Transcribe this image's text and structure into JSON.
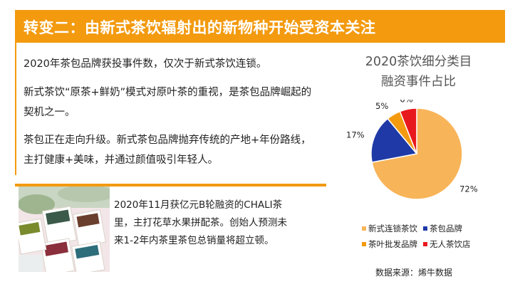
{
  "header": {
    "title": "转变二：由新式茶饮辐射出的新物种开始受资本关注",
    "color": "#f39a0f"
  },
  "paragraphs": [
    "2020年茶包品牌获投事件数，仅次于新式茶饮连锁。",
    "新式茶饮“原茶+鲜奶”模式对原叶茶的重视，是茶包品牌崛起的契机之一。",
    "茶包正在走向升级。新式茶包品牌抛弃传统的产地+年份路线，主打健康+美味，并通过颜值吸引年轻人。"
  ],
  "case_text": "2020年11月获亿元B轮融资的CHALI茶里，主打花草水果拼配茶。创始人预测未来1-2年内茶里茶包总销量将超立顿。",
  "chart_data": {
    "type": "pie",
    "title_lines": [
      "2020茶饮细分类目",
      "融资事件占比"
    ],
    "categories": [
      "新式连锁茶饮",
      "茶包品牌",
      "茶叶批发品牌",
      "无人茶饮店"
    ],
    "values": [
      72,
      17,
      5,
      6
    ],
    "labels": [
      "72%",
      "17%",
      "5%",
      "6%"
    ],
    "colors": [
      "#f8b458",
      "#1f3aa6",
      "#f39a0f",
      "#e8191d"
    ],
    "legend_placement": "bottom"
  },
  "source": "数据来源：烯牛数据"
}
